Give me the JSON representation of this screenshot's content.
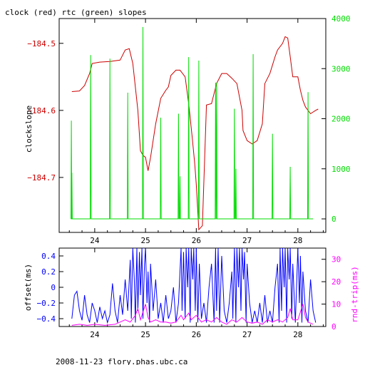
{
  "title": "clock (red) rtc (green) slopes",
  "footer": "2008-11-23 flory.phas.ubc.ca",
  "colors": {
    "clock": "#cc0000",
    "rtc": "#00dd00",
    "offset": "#0000ff",
    "rndtrip": "#ff00ff",
    "axis": "#000000"
  },
  "chart_data": [
    {
      "type": "line",
      "title": "clock (red) rtc (green) slopes",
      "xlabel": "",
      "ylabel": "clockslope",
      "xlim": [
        23.3,
        28.55
      ],
      "ylim": [
        -184.782,
        -184.463
      ],
      "y2lim": [
        -270,
        4000
      ],
      "x_ticks": [
        24,
        25,
        26,
        27,
        28
      ],
      "y_ticks": [
        -184.5,
        -184.6,
        -184.7
      ],
      "y_tick_labels": [
        "−184.5",
        "−184.6",
        "−184.7"
      ],
      "y2_ticks": [
        0,
        1000,
        2000,
        3000,
        4000
      ],
      "series": [
        {
          "axis": "left",
          "color": "#cc0000",
          "points": [
            [
              23.55,
              -184.572
            ],
            [
              23.7,
              -184.571
            ],
            [
              23.8,
              -184.563
            ],
            [
              23.9,
              -184.545
            ],
            [
              23.95,
              -184.53
            ],
            [
              24.1,
              -184.528
            ],
            [
              24.3,
              -184.527
            ],
            [
              24.5,
              -184.525
            ],
            [
              24.6,
              -184.51
            ],
            [
              24.68,
              -184.508
            ],
            [
              24.75,
              -184.53
            ],
            [
              24.85,
              -184.6
            ],
            [
              24.9,
              -184.66
            ],
            [
              24.95,
              -184.667
            ],
            [
              25.0,
              -184.67
            ],
            [
              25.05,
              -184.69
            ],
            [
              25.1,
              -184.67
            ],
            [
              25.2,
              -184.62
            ],
            [
              25.3,
              -184.582
            ],
            [
              25.4,
              -184.57
            ],
            [
              25.45,
              -184.565
            ],
            [
              25.5,
              -184.548
            ],
            [
              25.6,
              -184.54
            ],
            [
              25.68,
              -184.54
            ],
            [
              25.78,
              -184.55
            ],
            [
              25.85,
              -184.59
            ],
            [
              25.92,
              -184.64
            ],
            [
              25.97,
              -184.68
            ],
            [
              26.0,
              -184.71
            ],
            [
              26.05,
              -184.778
            ],
            [
              26.12,
              -184.772
            ],
            [
              26.2,
              -184.592
            ],
            [
              26.3,
              -184.59
            ],
            [
              26.4,
              -184.56
            ],
            [
              26.5,
              -184.545
            ],
            [
              26.6,
              -184.545
            ],
            [
              26.7,
              -184.552
            ],
            [
              26.8,
              -184.56
            ],
            [
              26.9,
              -184.6
            ],
            [
              26.92,
              -184.63
            ],
            [
              27.0,
              -184.645
            ],
            [
              27.1,
              -184.65
            ],
            [
              27.2,
              -184.645
            ],
            [
              27.3,
              -184.62
            ],
            [
              27.35,
              -184.56
            ],
            [
              27.45,
              -184.545
            ],
            [
              27.55,
              -184.52
            ],
            [
              27.6,
              -184.51
            ],
            [
              27.7,
              -184.5
            ],
            [
              27.75,
              -184.49
            ],
            [
              27.8,
              -184.492
            ],
            [
              27.85,
              -184.52
            ],
            [
              27.9,
              -184.55
            ],
            [
              28.0,
              -184.55
            ],
            [
              28.05,
              -184.57
            ],
            [
              28.1,
              -184.585
            ],
            [
              28.15,
              -184.595
            ],
            [
              28.25,
              -184.605
            ],
            [
              28.35,
              -184.6
            ],
            [
              28.4,
              -184.598
            ]
          ]
        },
        {
          "axis": "right",
          "color": "#00dd00",
          "baseline": 0,
          "spikes": [
            [
              23.54,
              1960
            ],
            [
              23.55,
              920
            ],
            [
              23.92,
              3270
            ],
            [
              24.3,
              3200
            ],
            [
              24.65,
              2520
            ],
            [
              24.95,
              3830
            ],
            [
              25.3,
              2020
            ],
            [
              25.65,
              2100
            ],
            [
              25.68,
              850
            ],
            [
              25.85,
              3230
            ],
            [
              26.05,
              3160
            ],
            [
              26.38,
              2720
            ],
            [
              26.4,
              2720
            ],
            [
              26.75,
              2200
            ],
            [
              26.78,
              1000
            ],
            [
              27.12,
              3290
            ],
            [
              27.5,
              1700
            ],
            [
              27.85,
              1040
            ],
            [
              28.2,
              2530
            ]
          ]
        }
      ]
    },
    {
      "type": "line",
      "xlabel": "",
      "ylabel": "offset(ms)",
      "y2label": "rnd-trip(ms)",
      "xlim": [
        23.3,
        28.55
      ],
      "ylim": [
        -0.5,
        0.5
      ],
      "y2lim": [
        0,
        35
      ],
      "x_ticks": [
        24,
        25,
        26,
        27,
        28
      ],
      "y_ticks": [
        0.4,
        0.2,
        0,
        -0.2,
        -0.4
      ],
      "y_tick_labels": [
        "0.4",
        "0.2",
        "0",
        "−0.2",
        "−0.4"
      ],
      "y2_ticks": [
        0,
        10,
        20,
        30
      ],
      "series": [
        {
          "axis": "left",
          "color": "#0000ff",
          "points": [
            [
              23.55,
              -0.4
            ],
            [
              23.6,
              -0.1
            ],
            [
              23.65,
              -0.05
            ],
            [
              23.7,
              -0.3
            ],
            [
              23.75,
              -0.42
            ],
            [
              23.8,
              -0.1
            ],
            [
              23.85,
              -0.35
            ],
            [
              23.9,
              -0.45
            ],
            [
              23.95,
              -0.2
            ],
            [
              24.0,
              -0.3
            ],
            [
              24.05,
              -0.45
            ],
            [
              24.1,
              -0.25
            ],
            [
              24.15,
              -0.4
            ],
            [
              24.2,
              -0.3
            ],
            [
              24.25,
              -0.45
            ],
            [
              24.3,
              -0.35
            ],
            [
              24.35,
              0.05
            ],
            [
              24.4,
              -0.3
            ],
            [
              24.45,
              -0.45
            ],
            [
              24.5,
              -0.1
            ],
            [
              24.55,
              -0.35
            ],
            [
              24.6,
              0.1
            ],
            [
              24.65,
              -0.3
            ],
            [
              24.7,
              0.35
            ],
            [
              24.72,
              -0.4
            ],
            [
              24.75,
              0.5
            ],
            [
              24.78,
              0.1
            ],
            [
              24.8,
              -0.45
            ],
            [
              24.83,
              0.5
            ],
            [
              24.85,
              -0.3
            ],
            [
              24.88,
              0.45
            ],
            [
              24.9,
              -0.1
            ],
            [
              24.93,
              0.5
            ],
            [
              24.95,
              -0.4
            ],
            [
              24.98,
              0.3
            ],
            [
              25.0,
              0.5
            ],
            [
              25.03,
              -0.2
            ],
            [
              25.05,
              0.2
            ],
            [
              25.08,
              -0.45
            ],
            [
              25.1,
              0.3
            ],
            [
              25.15,
              -0.3
            ],
            [
              25.2,
              0.1
            ],
            [
              25.25,
              -0.4
            ],
            [
              25.3,
              -0.2
            ],
            [
              25.35,
              -0.45
            ],
            [
              25.4,
              -0.1
            ],
            [
              25.45,
              -0.4
            ],
            [
              25.5,
              -0.3
            ],
            [
              25.55,
              0.0
            ],
            [
              25.6,
              -0.45
            ],
            [
              25.65,
              -0.2
            ],
            [
              25.7,
              0.5
            ],
            [
              25.72,
              -0.3
            ],
            [
              25.75,
              0.45
            ],
            [
              25.78,
              -0.4
            ],
            [
              25.8,
              0.5
            ],
            [
              25.83,
              0.0
            ],
            [
              25.85,
              0.5
            ],
            [
              25.88,
              -0.45
            ],
            [
              25.9,
              0.5
            ],
            [
              25.93,
              0.1
            ],
            [
              25.95,
              0.5
            ],
            [
              25.98,
              -0.3
            ],
            [
              26.0,
              0.5
            ],
            [
              26.03,
              -0.45
            ],
            [
              26.06,
              0.3
            ],
            [
              26.1,
              -0.4
            ],
            [
              26.15,
              -0.2
            ],
            [
              26.2,
              -0.45
            ],
            [
              26.25,
              0.0
            ],
            [
              26.3,
              0.3
            ],
            [
              26.35,
              -0.45
            ],
            [
              26.38,
              0.5
            ],
            [
              26.4,
              -0.3
            ],
            [
              26.43,
              0.5
            ],
            [
              26.46,
              -0.45
            ],
            [
              26.5,
              0.4
            ],
            [
              26.55,
              -0.3
            ],
            [
              26.6,
              -0.45
            ],
            [
              26.65,
              -0.2
            ],
            [
              26.7,
              0.2
            ],
            [
              26.72,
              -0.4
            ],
            [
              26.75,
              0.5
            ],
            [
              26.78,
              -0.45
            ],
            [
              26.8,
              0.5
            ],
            [
              26.83,
              0.0
            ],
            [
              26.85,
              0.5
            ],
            [
              26.88,
              -0.3
            ],
            [
              26.9,
              0.5
            ],
            [
              26.93,
              0.1
            ],
            [
              26.95,
              0.45
            ],
            [
              26.98,
              -0.45
            ],
            [
              27.0,
              0.3
            ],
            [
              27.05,
              -0.2
            ],
            [
              27.1,
              -0.45
            ],
            [
              27.15,
              -0.3
            ],
            [
              27.2,
              -0.45
            ],
            [
              27.25,
              -0.2
            ],
            [
              27.3,
              -0.45
            ],
            [
              27.35,
              -0.1
            ],
            [
              27.4,
              -0.45
            ],
            [
              27.45,
              -0.3
            ],
            [
              27.5,
              -0.45
            ],
            [
              27.55,
              0.0
            ],
            [
              27.6,
              0.3
            ],
            [
              27.63,
              -0.45
            ],
            [
              27.65,
              0.5
            ],
            [
              27.68,
              -0.3
            ],
            [
              27.7,
              0.5
            ],
            [
              27.73,
              0.0
            ],
            [
              27.75,
              0.5
            ],
            [
              27.78,
              -0.45
            ],
            [
              27.8,
              0.5
            ],
            [
              27.83,
              0.1
            ],
            [
              27.85,
              0.5
            ],
            [
              27.88,
              -0.4
            ],
            [
              27.9,
              0.3
            ],
            [
              27.95,
              -0.45
            ],
            [
              28.0,
              0.5
            ],
            [
              28.03,
              -0.2
            ],
            [
              28.05,
              0.4
            ],
            [
              28.08,
              -0.45
            ],
            [
              28.1,
              0.2
            ],
            [
              28.15,
              -0.3
            ],
            [
              28.2,
              -0.45
            ],
            [
              28.25,
              0.1
            ],
            [
              28.3,
              -0.3
            ],
            [
              28.35,
              -0.45
            ]
          ]
        },
        {
          "axis": "right",
          "color": "#ff00ff",
          "points": [
            [
              23.55,
              0.5
            ],
            [
              23.7,
              1
            ],
            [
              23.85,
              0.5
            ],
            [
              24.0,
              1
            ],
            [
              24.2,
              0.5
            ],
            [
              24.4,
              1
            ],
            [
              24.6,
              3
            ],
            [
              24.7,
              2
            ],
            [
              24.8,
              5
            ],
            [
              24.85,
              8
            ],
            [
              24.9,
              3
            ],
            [
              25.0,
              10
            ],
            [
              25.05,
              4
            ],
            [
              25.1,
              2
            ],
            [
              25.2,
              3
            ],
            [
              25.3,
              2
            ],
            [
              25.4,
              2
            ],
            [
              25.5,
              1.5
            ],
            [
              25.6,
              2
            ],
            [
              25.7,
              5
            ],
            [
              25.75,
              3
            ],
            [
              25.85,
              6
            ],
            [
              25.9,
              3
            ],
            [
              26.0,
              5
            ],
            [
              26.1,
              2
            ],
            [
              26.2,
              3
            ],
            [
              26.3,
              2
            ],
            [
              26.4,
              4
            ],
            [
              26.5,
              2
            ],
            [
              26.6,
              1
            ],
            [
              26.7,
              3
            ],
            [
              26.8,
              2
            ],
            [
              26.9,
              4
            ],
            [
              27.0,
              2
            ],
            [
              27.1,
              1.5
            ],
            [
              27.2,
              2
            ],
            [
              27.3,
              1
            ],
            [
              27.4,
              3
            ],
            [
              27.5,
              2
            ],
            [
              27.6,
              3
            ],
            [
              27.7,
              2
            ],
            [
              27.8,
              4
            ],
            [
              27.85,
              8
            ],
            [
              27.9,
              3
            ],
            [
              28.0,
              3
            ],
            [
              28.1,
              10
            ],
            [
              28.15,
              4
            ],
            [
              28.2,
              2
            ],
            [
              28.3,
              1
            ]
          ]
        }
      ]
    }
  ]
}
